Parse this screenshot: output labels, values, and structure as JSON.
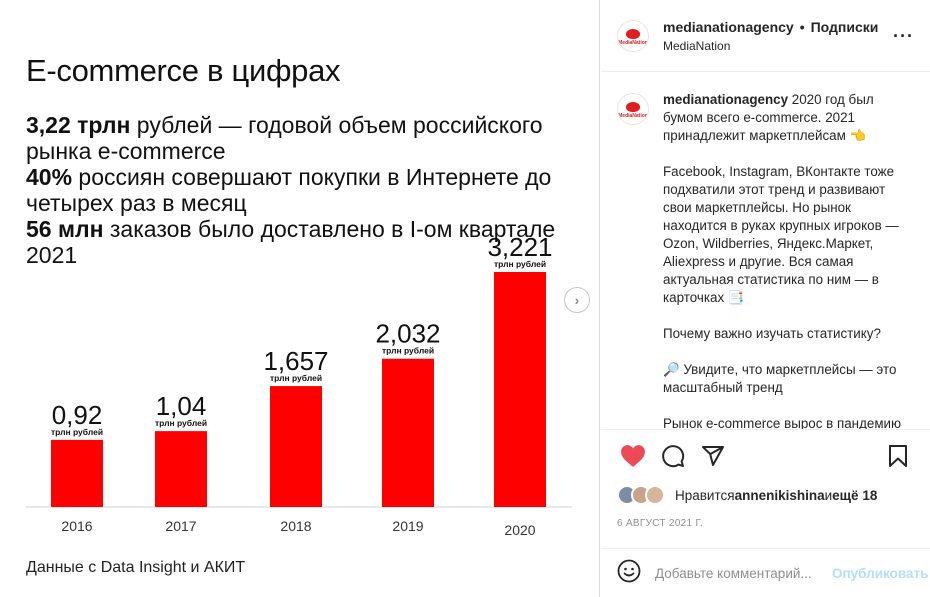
{
  "slide": {
    "title": "E-commerce в цифрах",
    "facts": [
      {
        "bold": "3,22 трлн",
        "text": " рублей — годовой объем российского рынка e-commerce"
      },
      {
        "bold": "40%",
        "text": " россиян совершают покупки в Интернете до четырех раз в месяц"
      },
      {
        "bold": "56 млн",
        "text": " заказов было доставлено в I-ом квартале 2021"
      }
    ],
    "source": "Данные с Data Insight и АКИТ"
  },
  "chart_data": {
    "type": "bar",
    "categories": [
      "2016",
      "2017",
      "2018",
      "2019",
      "2020"
    ],
    "values": [
      0.92,
      1.04,
      1.657,
      2.032,
      3.221
    ],
    "value_labels": [
      "0,92",
      "1,04",
      "1,657",
      "2,032",
      "3,221"
    ],
    "unit_label": "трлн рублей",
    "bar_color": "#ff0000",
    "ylim": [
      0,
      3.221
    ],
    "grid": false
  },
  "sidebar": {
    "account": "medianationagency",
    "dot": "•",
    "follow_label": "Подписки",
    "account_name": "MediaNation",
    "avatar_brand": "MediaNation",
    "caption_user": "medianationagency",
    "caption_paragraphs": [
      "2020 год был бумом всего e-commerce. 2021 принадлежит маркетплейсам 👈",
      "Facebook, Instagram, ВКонтакте тоже подхватили этот тренд и развивают свои маркетплейсы. Но рынок находится в руках крупных игроков — Ozon, Wildberries, Яндекс.Маркет, Aliexpress и другие. Вся самая актуальная статистика по ним — в карточках 📑",
      "Почему важно изучать статистику?",
      "🔎 Увидите, что маркетплейсы — это масштабный тренд",
      "Рынок e-commerce вырос в пандемию"
    ],
    "likes_prefix": "Нравится ",
    "likes_user": "annenikishina",
    "likes_middle": " и ",
    "likes_more": "ещё 18",
    "date": "6 АВГУСТ 2021 Г.",
    "comment_placeholder": "Добавьте комментарий...",
    "publish_label": "Опубликовать",
    "heart_color": "#ed4956",
    "like_avatar_colors": [
      "#7a8fa6",
      "#c9a38a",
      "#d8b49b"
    ]
  }
}
